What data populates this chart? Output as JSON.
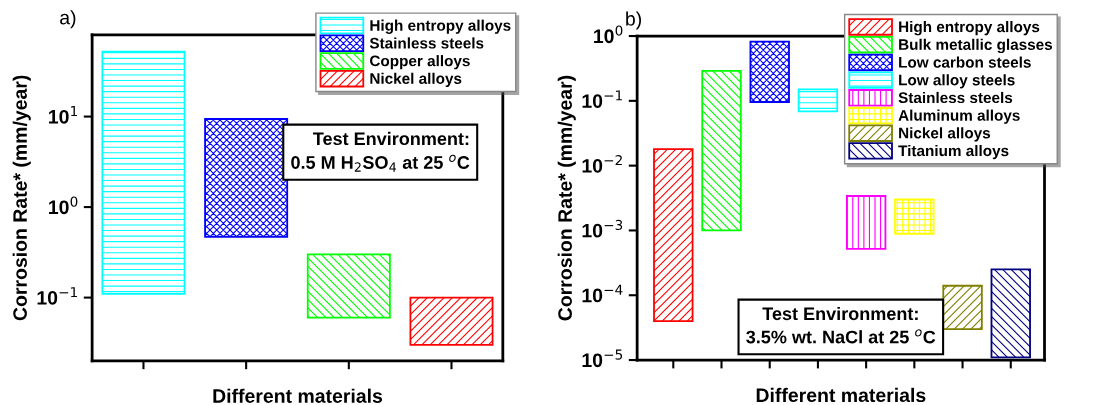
{
  "chart_data": [
    {
      "type": "bar",
      "title": "a)",
      "xlabel": "Different materials",
      "ylabel": "Corrosion Rate* (mm/year)",
      "categories": [
        null,
        null,
        null,
        null
      ],
      "log": "y",
      "ylim": [
        0.02,
        80
      ],
      "yticks": [
        {
          "value": 0.1,
          "label": "10$^{−1}$"
        },
        {
          "value": 1,
          "label": "10$^{0}$"
        },
        {
          "value": 10,
          "label": "10$^{1}$"
        }
      ],
      "tick_labels": "y",
      "legend": "top right",
      "grid": false,
      "annotations": [
        "Test Environment:\n0.5 M H$_{2}$SO$_{4}$ at 25 $^{o}$C"
      ],
      "series": [
        {
          "name": "High entropy alloys",
          "color": "#00ffff",
          "base": [
            0.11,
            null,
            null,
            null
          ],
          "values": [
            51.89,
            null,
            null,
            null
          ]
        },
        {
          "name": "Stainless steels",
          "color": "#0000ff",
          "base": [
            null,
            0.47,
            null,
            null
          ],
          "values": [
            null,
            8.93,
            null,
            null
          ]
        },
        {
          "name": "Copper alloys",
          "color": "#00ff00",
          "base": [
            null,
            null,
            0.06,
            null
          ],
          "values": [
            null,
            null,
            0.24,
            null
          ]
        },
        {
          "name": "Nickel alloys",
          "color": "#ff0000",
          "base": [
            null,
            null,
            null,
            0.03
          ],
          "values": [
            null,
            null,
            null,
            0.07
          ]
        }
      ]
    },
    {
      "type": "bar",
      "title": "b)",
      "xlabel": "Different materials",
      "ylabel": "Corrosion Rate* (mm/year)",
      "categories": [
        null,
        null,
        null,
        null,
        null,
        null,
        null,
        null
      ],
      "log": "y",
      "ylim": [
        1e-05,
        1
      ],
      "yticks": [
        {
          "value": 1e-05,
          "label": "10$^{−5}$"
        },
        {
          "value": 0.0001,
          "label": "10$^{−4}$"
        },
        {
          "value": 0.001,
          "label": "10$^{−3}$"
        },
        {
          "value": 0.01,
          "label": "10$^{−2}$"
        },
        {
          "value": 0.1,
          "label": "10$^{−1}$"
        },
        {
          "value": 1,
          "label": "10$^{0}$"
        }
      ],
      "tick_labels": "y",
      "legend": "top right",
      "grid": false,
      "annotations": [
        "Test Environment:\n3.5% wt. NaCl at 25 $^{o}$C"
      ],
      "series": [
        {
          "name": "High entropy alloys",
          "color": "#ff0000",
          "base": [
            4e-05,
            null,
            null,
            null,
            null,
            null,
            null,
            null
          ],
          "values": [
            0.01796,
            null,
            null,
            null,
            null,
            null,
            null,
            null
          ]
        },
        {
          "name": "Bulk metallic glasses",
          "color": "#00ff00",
          "base": [
            null,
            0.001,
            null,
            null,
            null,
            null,
            null,
            null
          ],
          "values": [
            null,
            0.289,
            null,
            null,
            null,
            null,
            null,
            null
          ]
        },
        {
          "name": "Low carbon steels",
          "color": "#0000ff",
          "base": [
            null,
            null,
            0.096,
            null,
            null,
            null,
            null,
            null
          ],
          "values": [
            null,
            null,
            0.724,
            null,
            null,
            null,
            null,
            null
          ]
        },
        {
          "name": "Low alloy steels",
          "color": "#00ffff",
          "base": [
            null,
            null,
            null,
            0.069,
            null,
            null,
            null,
            null
          ],
          "values": [
            null,
            null,
            null,
            0.081,
            null,
            null,
            null,
            null
          ]
        },
        {
          "name": "Stainless steels",
          "color": "#ff00ff",
          "base": [
            null,
            null,
            null,
            null,
            0.00052,
            null,
            null,
            null
          ],
          "values": [
            null,
            null,
            null,
            null,
            0.00288,
            null,
            null,
            null
          ]
        },
        {
          "name": "Aluminum alloys",
          "color": "#ffff00",
          "base": [
            null,
            null,
            null,
            null,
            null,
            0.00089,
            null,
            null
          ],
          "values": [
            null,
            null,
            null,
            null,
            null,
            0.00211,
            null,
            null
          ]
        },
        {
          "name": "Nickel alloys",
          "color": "#808000",
          "base": [
            null,
            null,
            null,
            null,
            null,
            null,
            3e-05,
            null
          ],
          "values": [
            null,
            null,
            null,
            null,
            null,
            null,
            0.00011,
            null
          ]
        },
        {
          "name": "Titanium alloys",
          "color": "#000080",
          "base": [
            null,
            null,
            null,
            null,
            null,
            null,
            null,
            1.1e-05
          ],
          "values": [
            null,
            null,
            null,
            null,
            null,
            null,
            null,
            0.000239
          ]
        }
      ]
    }
  ]
}
